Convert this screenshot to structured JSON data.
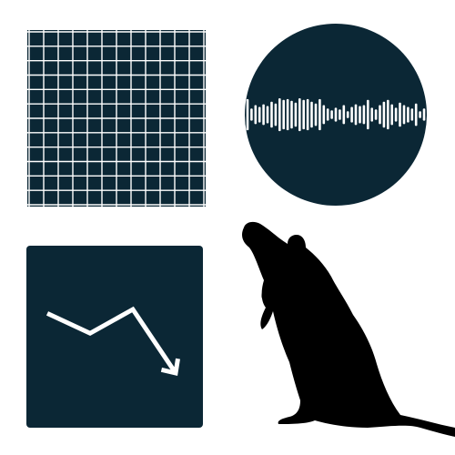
{
  "colors": {
    "background": "#ffffff",
    "panel": "#0b2735",
    "line": "#ffffff",
    "silhouette": "#000000"
  },
  "icons": {
    "grid": "grid-icon",
    "sound_wave": "sound-wave-icon",
    "downtrend": "downtrend-chart-icon",
    "rat": "rat-silhouette"
  },
  "grid": {
    "rows": 12,
    "cols": 12
  },
  "waveform": {
    "levels": [
      0.9,
      0.35,
      0.55,
      0.45,
      0.6,
      0.5,
      0.75,
      0.65,
      0.95,
      0.85,
      0.9,
      0.8,
      0.7,
      0.95,
      0.85,
      0.9,
      0.75,
      0.65,
      0.9,
      0.55,
      0.35,
      0.25,
      0.4,
      0.3,
      0.55,
      0.2,
      0.45,
      0.6,
      0.5,
      0.55,
      0.85,
      0.4,
      0.3,
      0.55,
      0.75,
      0.85,
      0.6,
      0.4,
      0.7,
      0.55,
      0.45,
      0.35,
      0.65,
      0.2,
      0.35
    ]
  },
  "trend": {
    "points": [
      [
        0,
        3.0
      ],
      [
        1,
        2.0
      ],
      [
        2,
        3.2
      ],
      [
        3,
        0
      ]
    ]
  }
}
